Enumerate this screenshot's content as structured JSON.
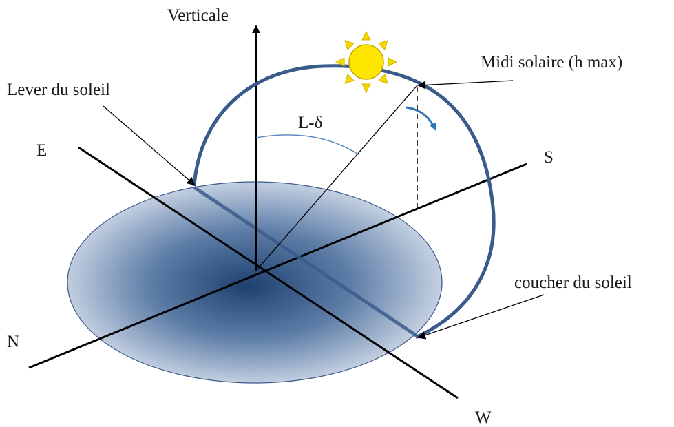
{
  "diagram": {
    "labels": {
      "vertical": "Verticale",
      "sunrise": "Lever du soleil",
      "noon": "Midi solaire (h max)",
      "sunset": "coucher du soleil",
      "angle": "L-δ",
      "east": "E",
      "south": "S",
      "north": "N",
      "west": "W"
    },
    "icons": {
      "sun": "sun-icon"
    },
    "colors": {
      "sun_path": "#3a5a8c",
      "horizon_center": "#1f3f6e",
      "horizon_edge": "#e8edf5",
      "axes": "#000000",
      "sun_fill": "#ffe600",
      "sun_rays": "#f5d800",
      "arrow_accent": "#2e75b6"
    }
  }
}
